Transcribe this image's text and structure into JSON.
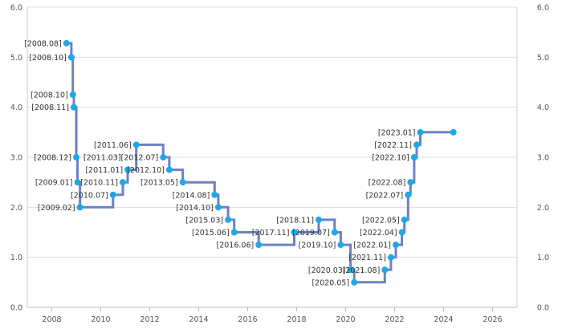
{
  "chart_data": {
    "type": "line",
    "step": "post",
    "xlim": [
      2007,
      2027
    ],
    "ylim": [
      0,
      6
    ],
    "xticks": [
      2008,
      2010,
      2012,
      2014,
      2016,
      2018,
      2020,
      2022,
      2024,
      2026
    ],
    "yticks": [
      0,
      1,
      2,
      3,
      4,
      5,
      6
    ],
    "ytick_labels": [
      "0.0",
      "1.0",
      "2.0",
      "3.0",
      "4.0",
      "5.0",
      "6.0"
    ],
    "grid": "horizontal",
    "colors": {
      "line": "#6b82c4",
      "marker": "#1ea8e8",
      "grid": "#dddddd",
      "axis": "#cccccc"
    },
    "points": [
      {
        "x": 2008.6,
        "y": 5.28,
        "label": "[2008.08]"
      },
      {
        "x": 2008.8,
        "y": 5.0,
        "label": "[2008.10]"
      },
      {
        "x": 2008.86,
        "y": 4.25,
        "label": "[2008.10]"
      },
      {
        "x": 2008.9,
        "y": 4.0,
        "label": "[2008.11]"
      },
      {
        "x": 2009.0,
        "y": 3.0,
        "label": "[2008.12]"
      },
      {
        "x": 2009.05,
        "y": 2.5,
        "label": "[2009.01]"
      },
      {
        "x": 2009.15,
        "y": 2.0,
        "label": "[2009.02]"
      },
      {
        "x": 2010.5,
        "y": 2.25,
        "label": "[2010.07]"
      },
      {
        "x": 2010.9,
        "y": 2.5,
        "label": "[2010.11]"
      },
      {
        "x": 2011.1,
        "y": 2.75,
        "label": "[2011.01]"
      },
      {
        "x": 2011.45,
        "y": 3.25,
        "label": "[2011.06]"
      },
      {
        "x": 2012.55,
        "y": 3.0,
        "label": "[2011.03][2012.07]"
      },
      {
        "x": 2012.8,
        "y": 2.75,
        "label": "[2012.10]"
      },
      {
        "x": 2013.35,
        "y": 2.5,
        "label": "[2013.05]"
      },
      {
        "x": 2014.65,
        "y": 2.25,
        "label": "[2014.08]"
      },
      {
        "x": 2014.8,
        "y": 2.0,
        "label": "[2014.10]"
      },
      {
        "x": 2015.2,
        "y": 1.75,
        "label": "[2015.03]"
      },
      {
        "x": 2015.45,
        "y": 1.5,
        "label": "[2015.06]"
      },
      {
        "x": 2016.45,
        "y": 1.25,
        "label": "[2016.06]"
      },
      {
        "x": 2017.9,
        "y": 1.5,
        "label": "[2017.11]"
      },
      {
        "x": 2018.9,
        "y": 1.75,
        "label": "[2018.11]"
      },
      {
        "x": 2019.55,
        "y": 1.5,
        "label": "[2019.07]"
      },
      {
        "x": 2019.8,
        "y": 1.25,
        "label": "[2019.10]"
      },
      {
        "x": 2020.2,
        "y": 0.75,
        "label": "[2020.03]"
      },
      {
        "x": 2020.35,
        "y": 0.5,
        "label": "[2020.05]"
      },
      {
        "x": 2021.6,
        "y": 0.75,
        "label": "[2021.08]"
      },
      {
        "x": 2021.85,
        "y": 1.0,
        "label": "[2021.11]"
      },
      {
        "x": 2022.05,
        "y": 1.25,
        "label": "[2022.01]"
      },
      {
        "x": 2022.3,
        "y": 1.5,
        "label": "[2022.04]"
      },
      {
        "x": 2022.4,
        "y": 1.75,
        "label": "[2022.05]"
      },
      {
        "x": 2022.55,
        "y": 2.25,
        "label": "[2022.07]"
      },
      {
        "x": 2022.65,
        "y": 2.5,
        "label": "[2022.08]"
      },
      {
        "x": 2022.8,
        "y": 3.0,
        "label": "[2022.10]"
      },
      {
        "x": 2022.9,
        "y": 3.25,
        "label": "[2022.11]"
      },
      {
        "x": 2023.05,
        "y": 3.5,
        "label": "[2023.01]"
      },
      {
        "x": 2024.4,
        "y": 3.5,
        "label": ""
      }
    ]
  }
}
